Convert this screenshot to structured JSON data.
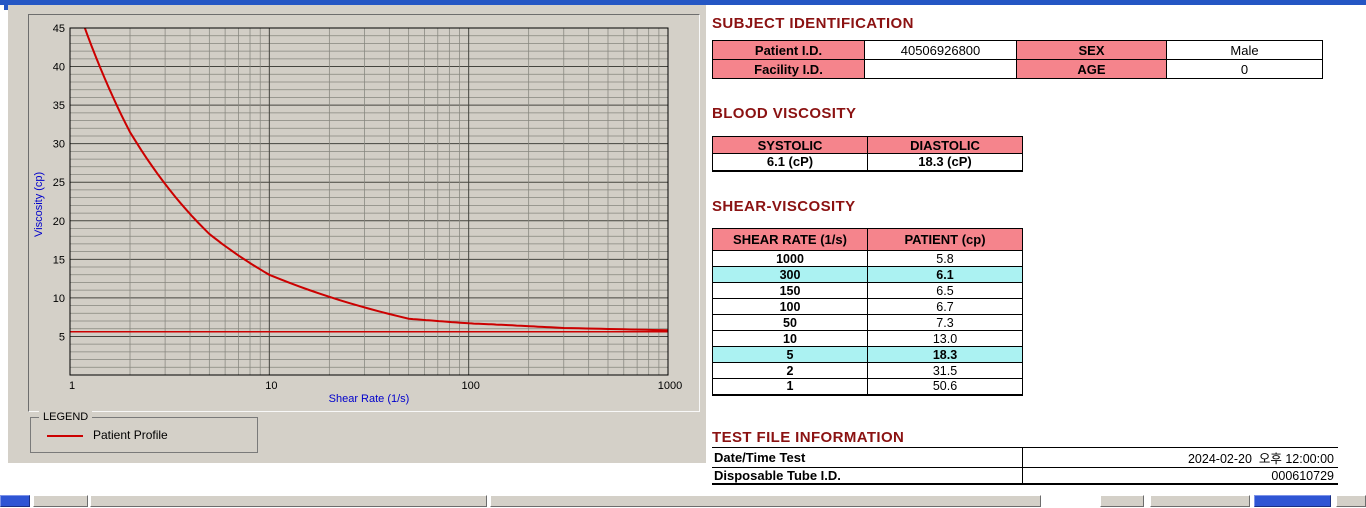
{
  "colors": {
    "header_text": "#8B1212",
    "table_header_bg": "#F5848C",
    "highlight_bg": "#ABF2F2",
    "curve_red": "#CC0000",
    "axis_label_blue": "#0000CC",
    "panel_gray": "#D4D0C8",
    "titlebar_blue": "#2456C4",
    "bottom_button_blue": "#2F55D4"
  },
  "chart_data": {
    "type": "line",
    "title": "",
    "xlabel": "Shear Rate (1/s)",
    "ylabel": "Viscosity (cp)",
    "x_scale": "log",
    "xlim": [
      1,
      1000
    ],
    "ylim": [
      0,
      45
    ],
    "x_ticks": [
      1,
      10,
      100,
      1000
    ],
    "y_ticks": [
      5,
      10,
      15,
      20,
      25,
      30,
      35,
      40,
      45
    ],
    "y_minor_step": 1,
    "grid": true,
    "series": [
      {
        "name": "Patient Profile",
        "color": "#CC0000",
        "width": 2,
        "x": [
          1,
          2,
          5,
          10,
          50,
          100,
          150,
          300,
          1000
        ],
        "y": [
          50.6,
          31.5,
          18.3,
          13.0,
          7.3,
          6.7,
          6.5,
          6.1,
          5.8
        ]
      },
      {
        "name": "asymptote-line",
        "color": "#CC0000",
        "width": 1.5,
        "x": [
          1,
          1000
        ],
        "y": [
          5.6,
          5.6
        ]
      }
    ],
    "legend": {
      "title": "LEGEND",
      "entries": [
        {
          "label": "Patient Profile",
          "color": "#CC0000"
        }
      ]
    }
  },
  "subject_identification": {
    "title": "SUBJECT IDENTIFICATION",
    "rows": [
      {
        "label1": "Patient I.D.",
        "value1": "40506926800",
        "label2": "SEX",
        "value2": "Male"
      },
      {
        "label1": "Facility I.D.",
        "value1": "",
        "label2": "AGE",
        "value2": "0"
      }
    ]
  },
  "blood_viscosity": {
    "title": "BLOOD VISCOSITY",
    "headers": [
      "SYSTOLIC",
      "DIASTOLIC"
    ],
    "values": [
      "6.1 (cP)",
      "18.3 (cP)"
    ]
  },
  "shear_viscosity": {
    "title": "SHEAR-VISCOSITY",
    "headers": [
      "SHEAR RATE (1/s)",
      "PATIENT (cp)"
    ],
    "rows": [
      {
        "rate": "1000",
        "value": "5.8",
        "highlight": false
      },
      {
        "rate": "300",
        "value": "6.1",
        "highlight": true
      },
      {
        "rate": "150",
        "value": "6.5",
        "highlight": false
      },
      {
        "rate": "100",
        "value": "6.7",
        "highlight": false
      },
      {
        "rate": "50",
        "value": "7.3",
        "highlight": false
      },
      {
        "rate": "10",
        "value": "13.0",
        "highlight": false
      },
      {
        "rate": "5",
        "value": "18.3",
        "highlight": true
      },
      {
        "rate": "2",
        "value": "31.5",
        "highlight": false
      },
      {
        "rate": "1",
        "value": "50.6",
        "highlight": false
      }
    ]
  },
  "test_file_information": {
    "title": "TEST FILE INFORMATION",
    "rows": [
      {
        "label": "Date/Time Test",
        "value": "2024-02-20  오후 12:00:00"
      },
      {
        "label": "Disposable Tube I.D.",
        "value": "000610729"
      }
    ]
  }
}
